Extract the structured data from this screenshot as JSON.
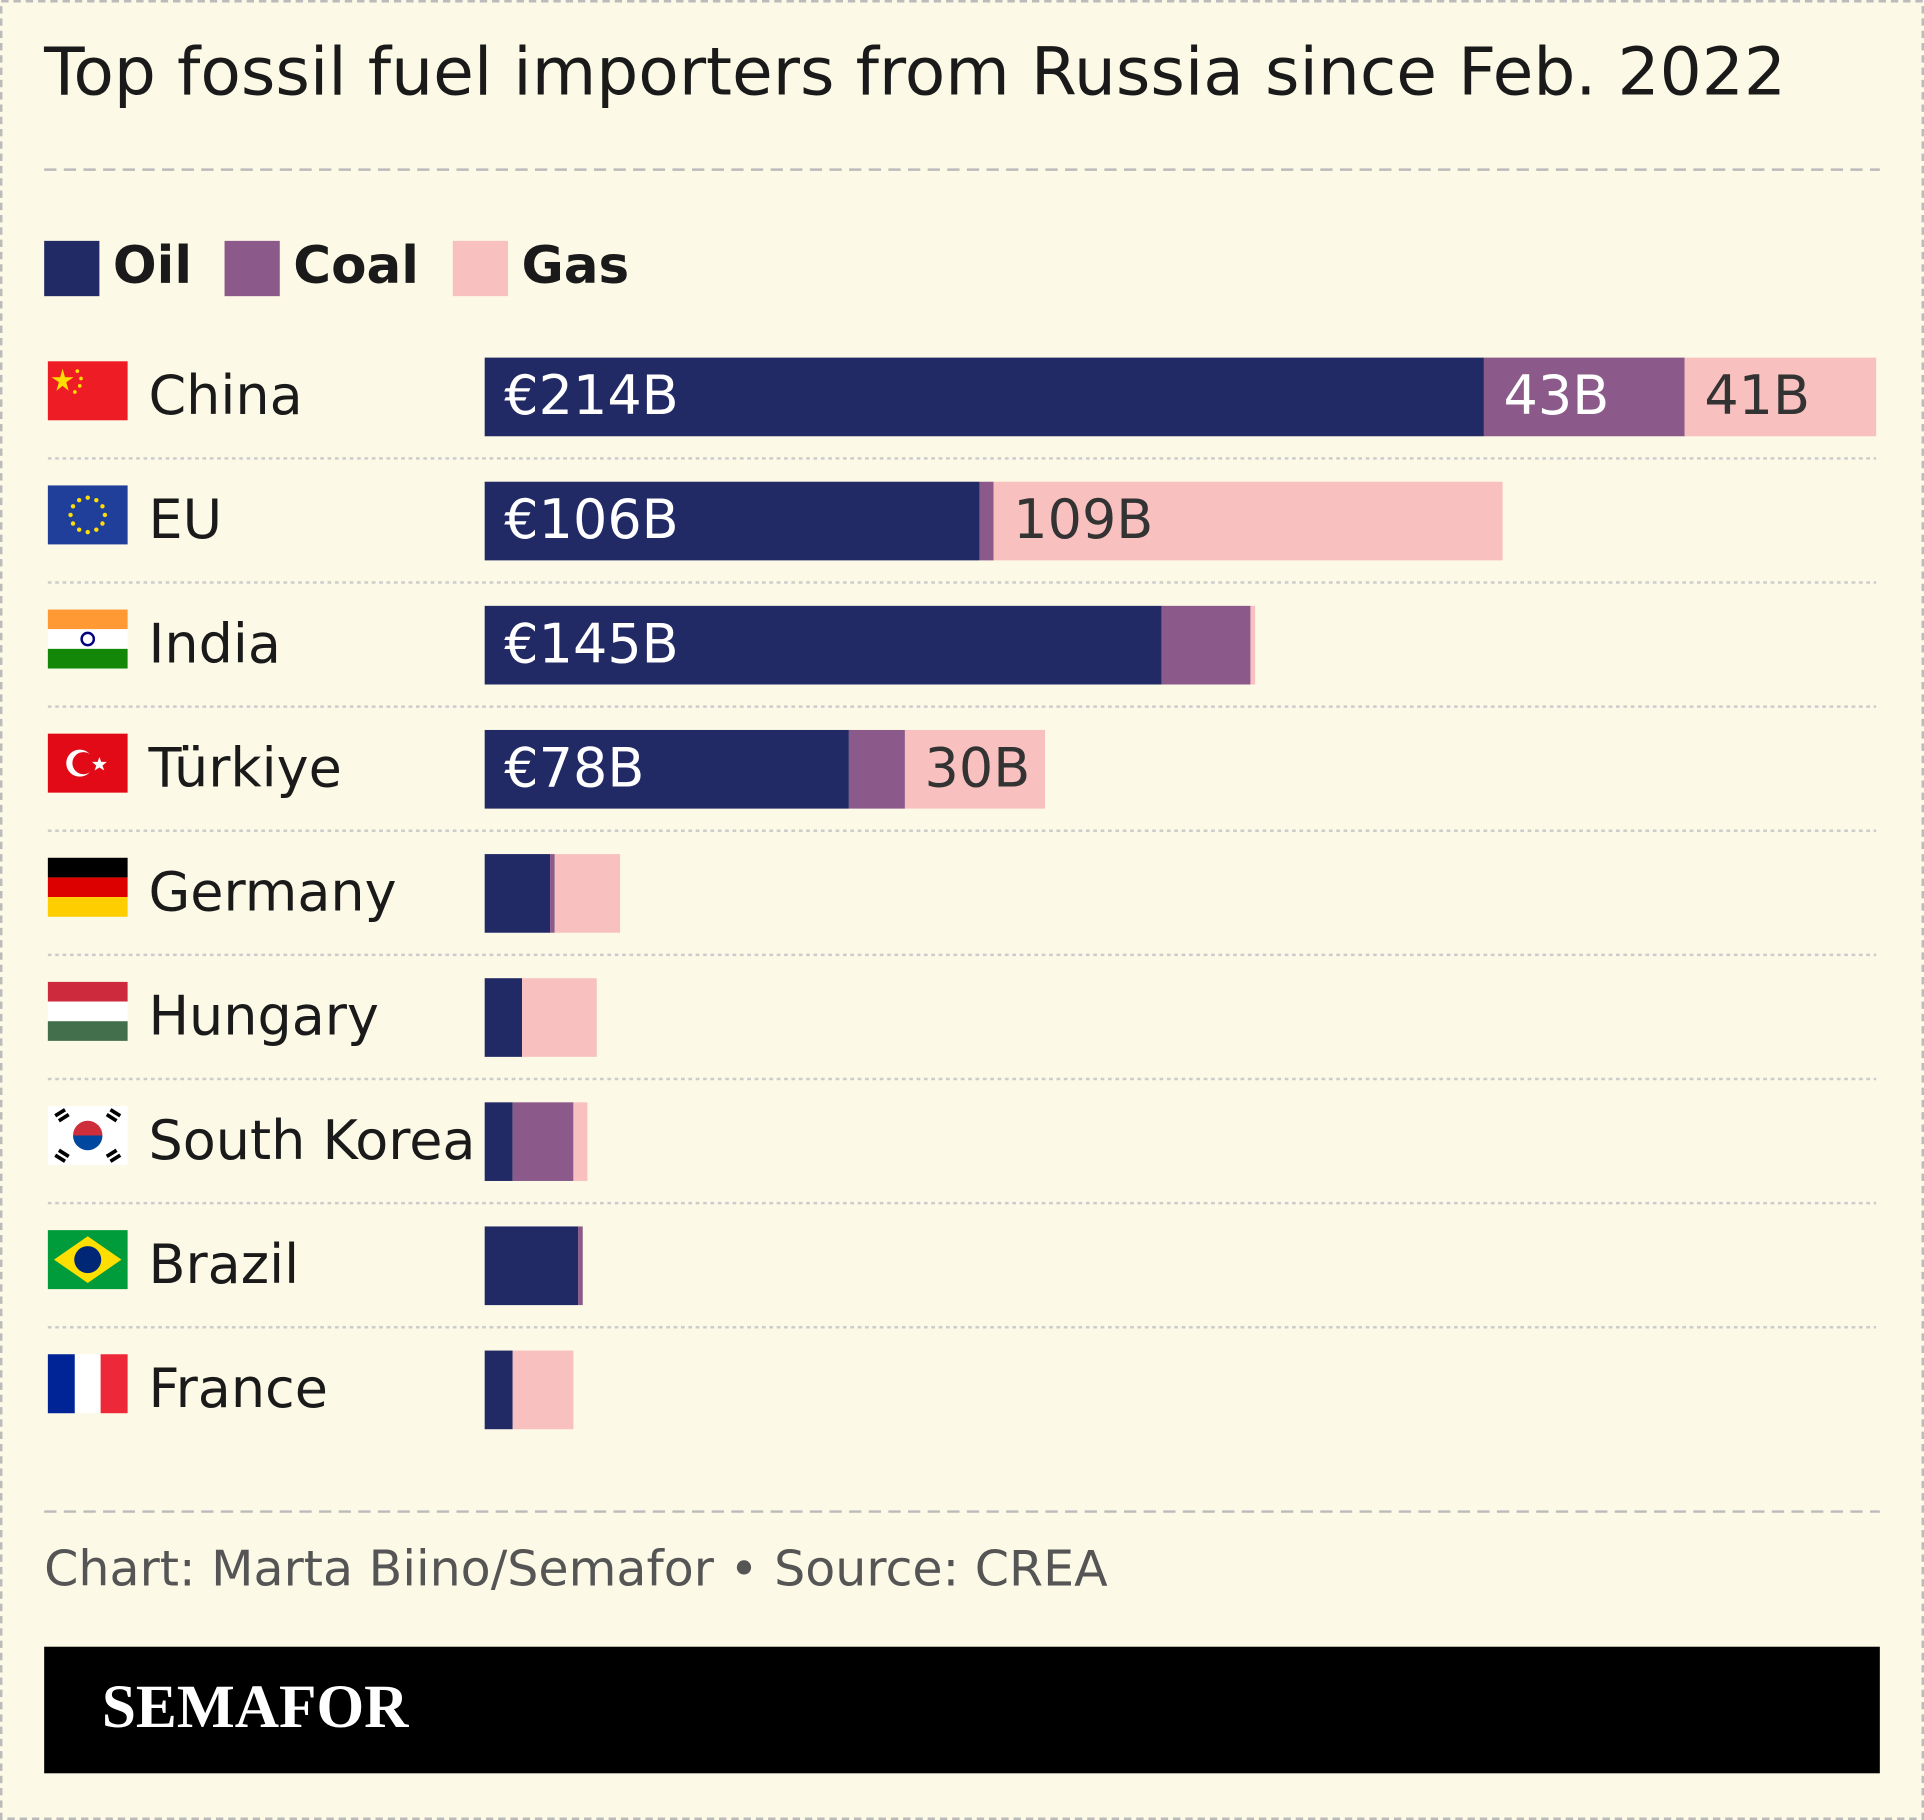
{
  "chart_data": {
    "type": "stacked-bar-horizontal",
    "title": "Top fossil fuel importers from Russia since Feb. 2022",
    "categories": [
      "China",
      "EU",
      "India",
      "Türkiye",
      "Germany",
      "Hungary",
      "South Korea",
      "Brazil",
      "France"
    ],
    "series": [
      {
        "name": "Oil",
        "color": "#222a66",
        "values": [
          214,
          106,
          145,
          78,
          14,
          8,
          6,
          20,
          6
        ],
        "value_labels": [
          "€214B",
          "€106B",
          "€145B",
          "€78B",
          null,
          null,
          null,
          null,
          null
        ]
      },
      {
        "name": "Coal",
        "color": "#8b5a8a",
        "values": [
          43,
          3,
          19,
          12,
          1,
          0,
          13,
          1,
          0
        ],
        "value_labels": [
          "43B",
          null,
          null,
          null,
          null,
          null,
          null,
          null,
          null
        ]
      },
      {
        "name": "Gas",
        "color": "#f8c1c0",
        "values": [
          41,
          109,
          1,
          30,
          14,
          16,
          3,
          0,
          13
        ],
        "value_labels": [
          "41B",
          "109B",
          null,
          "30B",
          null,
          null,
          null,
          null,
          null
        ]
      }
    ],
    "footer": "Chart: Marta Biino/Semafor • Source: CREA",
    "brand": "SEMAFOR"
  }
}
